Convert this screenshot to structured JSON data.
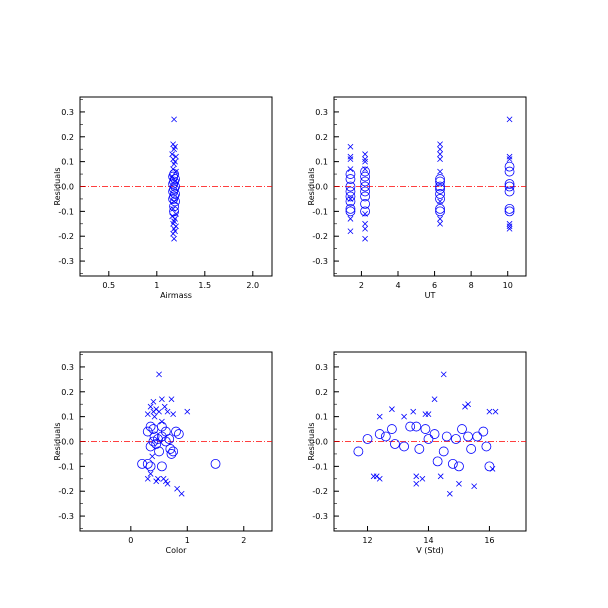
{
  "colors": {
    "marker": "#0000ff",
    "zero_line": "#ff0000",
    "frame": "#000000"
  },
  "chart_data": [
    {
      "type": "scatter",
      "xlabel": "Airmass",
      "ylabel": "Residuals",
      "xlim": [
        0.2,
        2.2
      ],
      "ylim": [
        -0.36,
        0.36
      ],
      "xticks": [
        0.5,
        1.0,
        1.5,
        2.0
      ],
      "xtick_labels": [
        "0.5",
        "1",
        "1.5",
        "2.0"
      ],
      "yticks": [
        -0.3,
        -0.2,
        -0.1,
        0.0,
        0.1,
        0.2,
        0.3
      ],
      "ytick_labels": [
        "-0.3",
        "-0.2",
        "-0.1",
        "-0.0",
        "0.1",
        "0.2",
        "0.3"
      ],
      "reference_line": {
        "y": 0,
        "style": "dash-dot",
        "color": "#ff0000"
      },
      "series": [
        {
          "marker": "x",
          "points": [
            [
              1.18,
              0.27
            ],
            [
              1.17,
              0.17
            ],
            [
              1.19,
              0.16
            ],
            [
              1.18,
              0.15
            ],
            [
              1.16,
              0.13
            ],
            [
              1.2,
              0.12
            ],
            [
              1.17,
              0.11
            ],
            [
              1.19,
              0.1
            ],
            [
              1.18,
              0.09
            ],
            [
              1.17,
              0.07
            ],
            [
              1.2,
              0.06
            ],
            [
              1.16,
              0.04
            ],
            [
              1.19,
              0.02
            ],
            [
              1.18,
              -0.06
            ],
            [
              1.17,
              -0.09
            ],
            [
              1.2,
              -0.11
            ],
            [
              1.16,
              -0.12
            ],
            [
              1.19,
              -0.13
            ],
            [
              1.18,
              -0.14
            ],
            [
              1.17,
              -0.15
            ],
            [
              1.2,
              -0.16
            ],
            [
              1.18,
              -0.17
            ],
            [
              1.19,
              -0.18
            ],
            [
              1.17,
              -0.19
            ],
            [
              1.18,
              -0.21
            ]
          ]
        },
        {
          "marker": "o",
          "points": [
            [
              1.18,
              0.05
            ],
            [
              1.17,
              0.04
            ],
            [
              1.19,
              0.03
            ],
            [
              1.18,
              0.02
            ],
            [
              1.17,
              0.01
            ],
            [
              1.19,
              0.0
            ],
            [
              1.18,
              -0.01
            ],
            [
              1.17,
              -0.02
            ],
            [
              1.19,
              -0.03
            ],
            [
              1.18,
              -0.04
            ],
            [
              1.17,
              -0.05
            ],
            [
              1.19,
              -0.06
            ],
            [
              1.18,
              -0.08
            ],
            [
              1.18,
              -0.1
            ]
          ]
        }
      ]
    },
    {
      "type": "scatter",
      "xlabel": "UT",
      "ylabel": "Residuals",
      "xlim": [
        0.5,
        11.0
      ],
      "ylim": [
        -0.36,
        0.36
      ],
      "xticks": [
        2,
        4,
        6,
        8,
        10
      ],
      "xtick_labels": [
        "2",
        "4",
        "6",
        "8",
        "10"
      ],
      "yticks": [
        -0.3,
        -0.2,
        -0.1,
        0.0,
        0.1,
        0.2,
        0.3
      ],
      "ytick_labels": [
        "-0.3",
        "-0.2",
        "-0.1",
        "-0.0",
        "0.1",
        "0.2",
        "0.3"
      ],
      "reference_line": {
        "y": 0,
        "style": "dash-dot",
        "color": "#ff0000"
      },
      "series": [
        {
          "marker": "x",
          "points": [
            [
              1.4,
              0.16
            ],
            [
              1.4,
              0.12
            ],
            [
              1.4,
              0.11
            ],
            [
              1.4,
              0.07
            ],
            [
              1.4,
              -0.05
            ],
            [
              1.4,
              -0.13
            ],
            [
              1.4,
              -0.18
            ],
            [
              2.2,
              0.13
            ],
            [
              2.2,
              0.11
            ],
            [
              2.2,
              0.1
            ],
            [
              2.2,
              0.07
            ],
            [
              2.2,
              -0.11
            ],
            [
              2.2,
              -0.15
            ],
            [
              2.2,
              -0.17
            ],
            [
              2.2,
              -0.21
            ],
            [
              6.3,
              0.17
            ],
            [
              6.3,
              0.15
            ],
            [
              6.3,
              0.13
            ],
            [
              6.3,
              0.11
            ],
            [
              6.3,
              0.06
            ],
            [
              6.3,
              -0.06
            ],
            [
              6.3,
              -0.13
            ],
            [
              6.3,
              -0.15
            ],
            [
              10.1,
              0.27
            ],
            [
              10.1,
              0.12
            ],
            [
              10.1,
              0.11
            ],
            [
              10.1,
              -0.15
            ],
            [
              10.1,
              -0.16
            ],
            [
              10.1,
              -0.17
            ]
          ]
        },
        {
          "marker": "o",
          "points": [
            [
              1.4,
              0.05
            ],
            [
              1.4,
              0.03
            ],
            [
              1.4,
              0.0
            ],
            [
              1.4,
              -0.02
            ],
            [
              1.4,
              -0.04
            ],
            [
              1.4,
              -0.06
            ],
            [
              1.4,
              -0.09
            ],
            [
              1.4,
              -0.1
            ],
            [
              2.2,
              0.06
            ],
            [
              2.2,
              0.04
            ],
            [
              2.2,
              0.02
            ],
            [
              2.2,
              0.0
            ],
            [
              2.2,
              -0.02
            ],
            [
              2.2,
              -0.04
            ],
            [
              2.2,
              -0.07
            ],
            [
              2.2,
              -0.1
            ],
            [
              6.3,
              0.03
            ],
            [
              6.3,
              0.02
            ],
            [
              6.3,
              0.0
            ],
            [
              6.3,
              -0.01
            ],
            [
              6.3,
              -0.03
            ],
            [
              6.3,
              -0.05
            ],
            [
              6.3,
              -0.09
            ],
            [
              6.3,
              -0.1
            ],
            [
              10.1,
              0.08
            ],
            [
              10.1,
              0.06
            ],
            [
              10.1,
              0.01
            ],
            [
              10.1,
              0.0
            ],
            [
              10.1,
              -0.02
            ],
            [
              10.1,
              -0.09
            ],
            [
              10.1,
              -0.1
            ]
          ]
        }
      ]
    },
    {
      "type": "scatter",
      "xlabel": "Color",
      "ylabel": "Residuals",
      "xlim": [
        -0.9,
        2.5
      ],
      "ylim": [
        -0.36,
        0.36
      ],
      "xticks": [
        0,
        1,
        2
      ],
      "xtick_labels": [
        "0",
        "1",
        "2"
      ],
      "yticks": [
        -0.3,
        -0.2,
        -0.1,
        0.0,
        0.1,
        0.2,
        0.3
      ],
      "ytick_labels": [
        "-0.3",
        "-0.2",
        "-0.1",
        "-0.0",
        "0.1",
        "0.2",
        "0.3"
      ],
      "reference_line": {
        "y": 0,
        "style": "dash-dot",
        "color": "#ff0000"
      },
      "series": [
        {
          "marker": "x",
          "points": [
            [
              0.5,
              0.27
            ],
            [
              0.4,
              0.16
            ],
            [
              0.35,
              0.14
            ],
            [
              0.45,
              0.13
            ],
            [
              0.55,
              0.17
            ],
            [
              0.6,
              0.14
            ],
            [
              0.72,
              0.17
            ],
            [
              0.4,
              0.12
            ],
            [
              0.5,
              0.12
            ],
            [
              0.3,
              0.11
            ],
            [
              0.75,
              0.11
            ],
            [
              1.0,
              0.12
            ],
            [
              0.42,
              0.1
            ],
            [
              0.55,
              0.08
            ],
            [
              0.65,
              0.12
            ],
            [
              0.35,
              -0.13
            ],
            [
              0.3,
              -0.15
            ],
            [
              0.45,
              -0.16
            ],
            [
              0.48,
              -0.15
            ],
            [
              0.58,
              -0.15
            ],
            [
              0.62,
              -0.16
            ],
            [
              0.65,
              -0.17
            ],
            [
              0.82,
              -0.19
            ],
            [
              0.9,
              -0.21
            ],
            [
              0.38,
              -0.06
            ]
          ]
        },
        {
          "marker": "o",
          "points": [
            [
              0.2,
              -0.09
            ],
            [
              0.3,
              -0.09
            ],
            [
              0.35,
              -0.1
            ],
            [
              0.3,
              0.04
            ],
            [
              0.35,
              0.06
            ],
            [
              0.4,
              0.05
            ],
            [
              0.42,
              0.02
            ],
            [
              0.4,
              0.0
            ],
            [
              0.45,
              -0.01
            ],
            [
              0.35,
              -0.02
            ],
            [
              0.5,
              -0.04
            ],
            [
              0.55,
              -0.1
            ],
            [
              0.55,
              0.06
            ],
            [
              0.62,
              0.04
            ],
            [
              0.68,
              0.01
            ],
            [
              0.7,
              -0.03
            ],
            [
              0.72,
              -0.05
            ],
            [
              0.62,
              0.0
            ],
            [
              0.8,
              0.04
            ],
            [
              0.85,
              0.03
            ],
            [
              0.75,
              -0.04
            ],
            [
              1.5,
              -0.09
            ],
            [
              0.55,
              0.02
            ],
            [
              0.48,
              0.01
            ]
          ]
        }
      ]
    },
    {
      "type": "scatter",
      "xlabel": "V (Std)",
      "ylabel": "Residuals",
      "xlim": [
        10.9,
        17.2
      ],
      "ylim": [
        -0.36,
        0.36
      ],
      "xticks": [
        12,
        14,
        16
      ],
      "xtick_labels": [
        "12",
        "14",
        "16"
      ],
      "yticks": [
        -0.3,
        -0.2,
        -0.1,
        0.0,
        0.1,
        0.2,
        0.3
      ],
      "ytick_labels": [
        "-0.3",
        "-0.2",
        "-0.1",
        "-0.0",
        "0.1",
        "0.2",
        "0.3"
      ],
      "reference_line": {
        "y": 0,
        "style": "dash-dot",
        "color": "#ff0000"
      },
      "series": [
        {
          "marker": "x",
          "points": [
            [
              12.2,
              -0.14
            ],
            [
              12.4,
              -0.15
            ],
            [
              12.4,
              0.1
            ],
            [
              12.8,
              0.13
            ],
            [
              13.2,
              0.1
            ],
            [
              13.5,
              0.12
            ],
            [
              13.6,
              -0.14
            ],
            [
              13.6,
              -0.17
            ],
            [
              13.8,
              -0.15
            ],
            [
              13.9,
              0.11
            ],
            [
              14.0,
              0.11
            ],
            [
              14.2,
              0.17
            ],
            [
              14.4,
              -0.14
            ],
            [
              14.5,
              0.27
            ],
            [
              14.7,
              -0.21
            ],
            [
              15.0,
              -0.17
            ],
            [
              15.2,
              0.14
            ],
            [
              15.3,
              0.15
            ],
            [
              15.5,
              -0.18
            ],
            [
              16.0,
              0.12
            ],
            [
              16.2,
              0.12
            ],
            [
              16.1,
              -0.11
            ],
            [
              12.3,
              -0.14
            ]
          ]
        },
        {
          "marker": "o",
          "points": [
            [
              11.7,
              -0.04
            ],
            [
              12.0,
              0.01
            ],
            [
              12.4,
              0.03
            ],
            [
              12.6,
              0.02
            ],
            [
              12.8,
              0.05
            ],
            [
              12.9,
              -0.01
            ],
            [
              13.2,
              -0.02
            ],
            [
              13.4,
              0.06
            ],
            [
              13.6,
              0.06
            ],
            [
              13.7,
              -0.03
            ],
            [
              13.9,
              0.05
            ],
            [
              14.0,
              0.01
            ],
            [
              14.2,
              0.03
            ],
            [
              14.3,
              -0.08
            ],
            [
              14.5,
              -0.04
            ],
            [
              14.6,
              0.02
            ],
            [
              14.8,
              -0.09
            ],
            [
              14.9,
              0.01
            ],
            [
              15.0,
              -0.1
            ],
            [
              15.1,
              0.05
            ],
            [
              15.3,
              0.02
            ],
            [
              15.4,
              -0.03
            ],
            [
              15.6,
              0.02
            ],
            [
              15.8,
              0.04
            ],
            [
              15.9,
              -0.02
            ],
            [
              16.0,
              -0.1
            ]
          ]
        }
      ]
    }
  ]
}
